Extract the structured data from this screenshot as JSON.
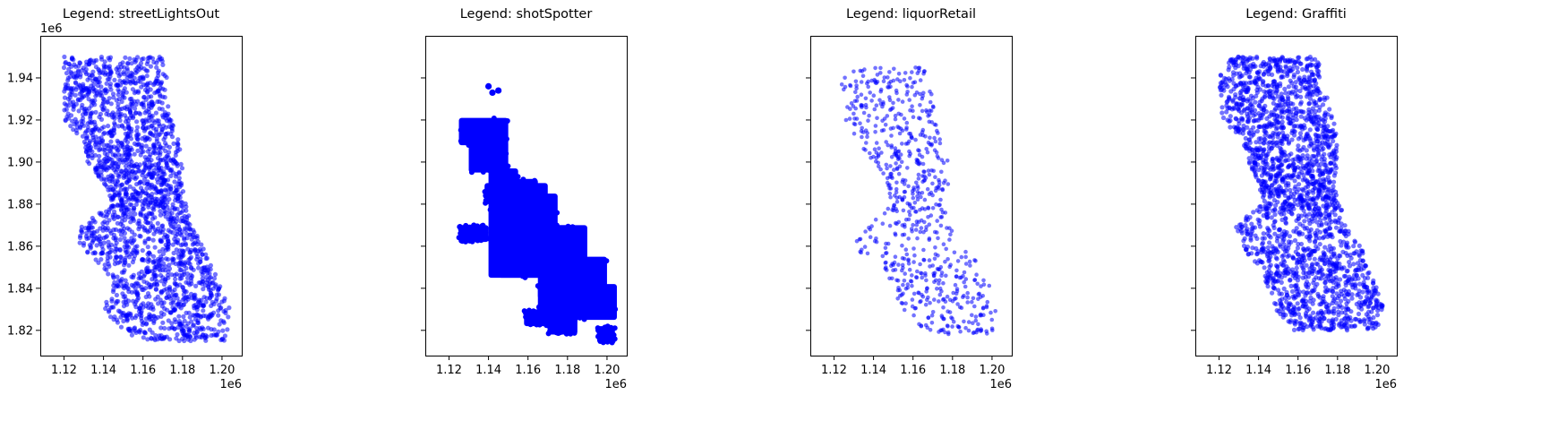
{
  "figure": {
    "layout": "1 row x 4 scatter panels, shared y axis",
    "marker_color": "#0000ff",
    "marker_alpha": 0.55
  },
  "chart_data": [
    {
      "type": "scatter",
      "title": "Legend: streetLightsOut",
      "xlim": [
        1108000,
        1210000
      ],
      "ylim": [
        1808000,
        1960000
      ],
      "x_ticks": [
        "1.12",
        "1.14",
        "1.16",
        "1.18",
        "1.20"
      ],
      "x_tick_values": [
        1120000,
        1140000,
        1160000,
        1180000,
        1200000
      ],
      "x_offset": "1e6",
      "y_ticks": [
        "1.82",
        "1.84",
        "1.86",
        "1.88",
        "1.90",
        "1.92",
        "1.94"
      ],
      "y_tick_values": [
        1820000,
        1840000,
        1860000,
        1880000,
        1900000,
        1920000,
        1940000
      ],
      "y_offset": "1e6",
      "show_y_tick_labels": true,
      "density": "dense",
      "coverage": [
        [
          1950000,
          1120000,
          1170000
        ],
        [
          1940000,
          1120000,
          1172000
        ],
        [
          1930000,
          1120000,
          1172000
        ],
        [
          1920000,
          1120000,
          1175000
        ],
        [
          1910000,
          1130000,
          1178000
        ],
        [
          1900000,
          1132000,
          1180000
        ],
        [
          1890000,
          1140000,
          1180000
        ],
        [
          1880000,
          1145000,
          1182000
        ],
        [
          1870000,
          1128000,
          1185000
        ],
        [
          1860000,
          1128000,
          1190000
        ],
        [
          1850000,
          1140000,
          1195000
        ],
        [
          1840000,
          1145000,
          1200000
        ],
        [
          1830000,
          1138000,
          1204000
        ],
        [
          1820000,
          1150000,
          1203000
        ],
        [
          1815000,
          1158000,
          1203000
        ]
      ],
      "n_points": 2200
    },
    {
      "type": "scatter",
      "title": "Legend: shotSpotter",
      "xlim": [
        1108000,
        1210000
      ],
      "ylim": [
        1808000,
        1960000
      ],
      "x_ticks": [
        "1.12",
        "1.14",
        "1.16",
        "1.18",
        "1.20"
      ],
      "x_tick_values": [
        1120000,
        1140000,
        1160000,
        1180000,
        1200000
      ],
      "x_offset": "1e6",
      "y_ticks": [],
      "y_tick_values": [
        1820000,
        1840000,
        1860000,
        1880000,
        1900000,
        1920000,
        1940000
      ],
      "show_y_tick_labels": false,
      "density": "solid",
      "blocks": [
        [
          1125000,
          1150000,
          1908000,
          1921000
        ],
        [
          1130000,
          1150000,
          1895000,
          1910000
        ],
        [
          1140000,
          1155000,
          1885000,
          1897000
        ],
        [
          1138000,
          1150000,
          1880000,
          1890000
        ],
        [
          1145000,
          1165000,
          1875000,
          1892000
        ],
        [
          1150000,
          1170000,
          1870000,
          1890000
        ],
        [
          1125000,
          1140000,
          1862000,
          1870000
        ],
        [
          1125000,
          1135000,
          1862000,
          1870000
        ],
        [
          1140000,
          1175000,
          1845000,
          1885000
        ],
        [
          1145000,
          1185000,
          1845000,
          1870000
        ],
        [
          1170000,
          1190000,
          1845000,
          1870000
        ],
        [
          1165000,
          1200000,
          1835000,
          1855000
        ],
        [
          1165000,
          1205000,
          1825000,
          1842000
        ],
        [
          1170000,
          1185000,
          1818000,
          1830000
        ],
        [
          1158000,
          1170000,
          1822000,
          1830000
        ],
        [
          1195000,
          1204000,
          1814000,
          1822000
        ]
      ],
      "small_clusters": [
        [
          1140000,
          1936000
        ],
        [
          1145000,
          1934000
        ],
        [
          1142000,
          1933000
        ]
      ],
      "n_points": 2600
    },
    {
      "type": "scatter",
      "title": "Legend: liquorRetail",
      "xlim": [
        1108000,
        1210000
      ],
      "ylim": [
        1808000,
        1960000
      ],
      "x_ticks": [
        "1.12",
        "1.14",
        "1.16",
        "1.18",
        "1.20"
      ],
      "x_tick_values": [
        1120000,
        1140000,
        1160000,
        1180000,
        1200000
      ],
      "x_offset": "1e6",
      "y_ticks": [],
      "y_tick_values": [
        1820000,
        1840000,
        1860000,
        1880000,
        1900000,
        1920000,
        1940000
      ],
      "show_y_tick_labels": false,
      "density": "sparse",
      "coverage": [
        [
          1945000,
          1122000,
          1168000
        ],
        [
          1930000,
          1125000,
          1170000
        ],
        [
          1920000,
          1125000,
          1172000
        ],
        [
          1910000,
          1132000,
          1175000
        ],
        [
          1900000,
          1140000,
          1178000
        ],
        [
          1890000,
          1145000,
          1178000
        ],
        [
          1880000,
          1150000,
          1175000
        ],
        [
          1870000,
          1138000,
          1180000
        ],
        [
          1860000,
          1128000,
          1185000
        ],
        [
          1850000,
          1145000,
          1195000
        ],
        [
          1840000,
          1150000,
          1200000
        ],
        [
          1830000,
          1150000,
          1202000
        ],
        [
          1818000,
          1170000,
          1200000
        ]
      ],
      "n_points": 700
    },
    {
      "type": "scatter",
      "title": "Legend: Graffiti",
      "xlim": [
        1108000,
        1210000
      ],
      "ylim": [
        1808000,
        1960000
      ],
      "x_ticks": [
        "1.12",
        "1.14",
        "1.16",
        "1.18",
        "1.20"
      ],
      "x_tick_values": [
        1120000,
        1140000,
        1160000,
        1180000,
        1200000
      ],
      "x_offset": "1e6",
      "y_ticks": [],
      "y_tick_values": [
        1820000,
        1840000,
        1860000,
        1880000,
        1900000,
        1920000,
        1940000
      ],
      "show_y_tick_labels": false,
      "density": "dense",
      "coverage": [
        [
          1950000,
          1125000,
          1170000
        ],
        [
          1940000,
          1120000,
          1172000
        ],
        [
          1930000,
          1120000,
          1175000
        ],
        [
          1920000,
          1122000,
          1178000
        ],
        [
          1910000,
          1130000,
          1180000
        ],
        [
          1900000,
          1135000,
          1180000
        ],
        [
          1890000,
          1140000,
          1180000
        ],
        [
          1880000,
          1142000,
          1182000
        ],
        [
          1870000,
          1128000,
          1185000
        ],
        [
          1860000,
          1130000,
          1192000
        ],
        [
          1850000,
          1140000,
          1195000
        ],
        [
          1840000,
          1145000,
          1200000
        ],
        [
          1830000,
          1148000,
          1204000
        ],
        [
          1820000,
          1158000,
          1200000
        ]
      ],
      "n_points": 2200
    }
  ]
}
